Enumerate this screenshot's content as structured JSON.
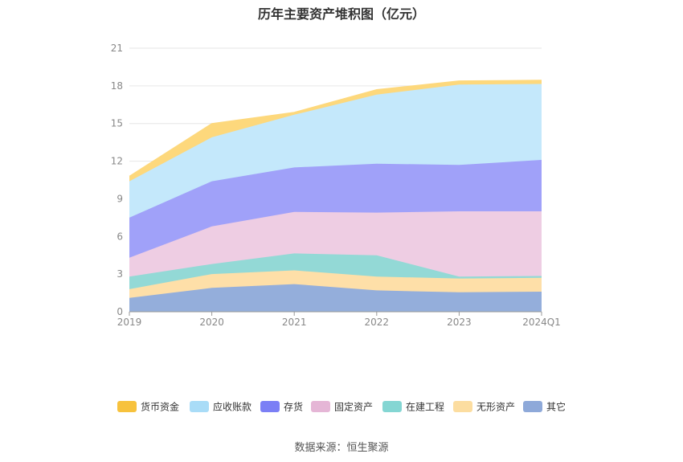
{
  "chart_data": {
    "type": "area",
    "stacked": true,
    "title": "历年主要资产堆积图（亿元）",
    "source": "数据来源：恒生聚源",
    "categories": [
      "2019",
      "2020",
      "2021",
      "2022",
      "2023",
      "2024Q1"
    ],
    "yticks": [
      "0",
      "3",
      "6",
      "9",
      "12",
      "15",
      "18",
      "21"
    ],
    "ylim": [
      0,
      21
    ],
    "grid": true,
    "legend_position": "bottom",
    "series": [
      {
        "name": "其它",
        "color": "#94aedb",
        "values": [
          1.1,
          1.9,
          2.2,
          1.7,
          1.55,
          1.6
        ]
      },
      {
        "name": "无形资产",
        "color": "#fedfa8",
        "values": [
          0.7,
          1.1,
          1.1,
          1.1,
          1.1,
          1.1
        ]
      },
      {
        "name": "在建工程",
        "color": "#93d9d6",
        "values": [
          1.0,
          0.8,
          1.35,
          1.7,
          0.15,
          0.15
        ]
      },
      {
        "name": "固定资产",
        "color": "#eecde3",
        "values": [
          1.5,
          3.0,
          3.3,
          3.4,
          5.2,
          5.15
        ]
      },
      {
        "name": "存货",
        "color": "#a0a1f9",
        "values": [
          3.2,
          3.6,
          3.55,
          3.9,
          3.7,
          4.1
        ]
      },
      {
        "name": "应收账款",
        "color": "#c4e8fb",
        "values": [
          2.9,
          3.5,
          4.2,
          5.5,
          6.4,
          6.05
        ]
      },
      {
        "name": "货币资金",
        "color": "#fdd87c",
        "values": [
          0.4,
          1.1,
          0.2,
          0.4,
          0.3,
          0.3
        ]
      }
    ],
    "legend_order": [
      "货币资金",
      "应收账款",
      "存货",
      "固定资产",
      "在建工程",
      "无形资产",
      "其它"
    ],
    "legend_colors": {
      "货币资金": "#f7c23d",
      "应收账款": "#a9dcf7",
      "存货": "#7b7ff5",
      "固定资产": "#e5b6d6",
      "在建工程": "#84d6d3",
      "无形资产": "#fcdda0",
      "其它": "#8ea9d9"
    }
  }
}
